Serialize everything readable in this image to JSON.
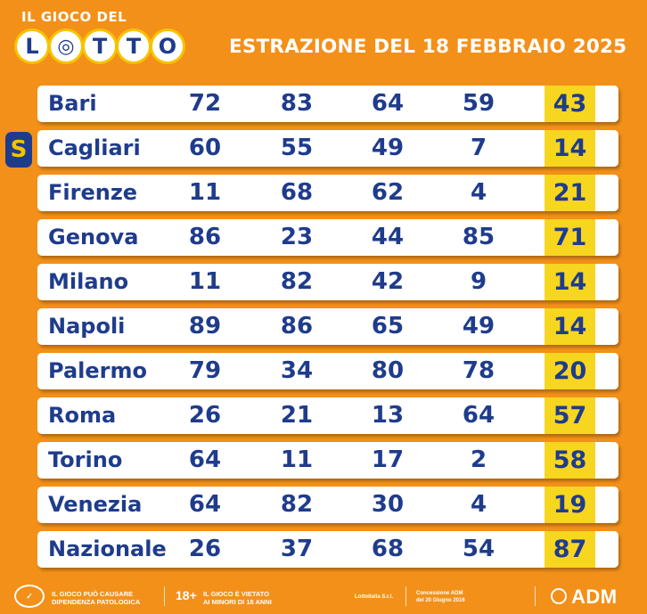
{
  "header": {
    "logo_top": "IL GIOCO DEL",
    "logo_letters": [
      "L",
      "◎",
      "T",
      "T",
      "O"
    ],
    "title": "ESTRAZIONE DEL 18 FEBBRAIO 2025"
  },
  "badge": "S",
  "rows": [
    {
      "city": "Bari",
      "n": [
        "72",
        "83",
        "64",
        "59",
        "43"
      ]
    },
    {
      "city": "Cagliari",
      "n": [
        "60",
        "55",
        "49",
        "7",
        "14"
      ]
    },
    {
      "city": "Firenze",
      "n": [
        "11",
        "68",
        "62",
        "4",
        "21"
      ]
    },
    {
      "city": "Genova",
      "n": [
        "86",
        "23",
        "44",
        "85",
        "71"
      ]
    },
    {
      "city": "Milano",
      "n": [
        "11",
        "82",
        "42",
        "9",
        "14"
      ]
    },
    {
      "city": "Napoli",
      "n": [
        "89",
        "86",
        "65",
        "49",
        "14"
      ]
    },
    {
      "city": "Palermo",
      "n": [
        "79",
        "34",
        "80",
        "78",
        "20"
      ]
    },
    {
      "city": "Roma",
      "n": [
        "26",
        "21",
        "13",
        "64",
        "57"
      ]
    },
    {
      "city": "Torino",
      "n": [
        "64",
        "11",
        "17",
        "2",
        "58"
      ]
    },
    {
      "city": "Venezia",
      "n": [
        "64",
        "82",
        "30",
        "4",
        "19"
      ]
    },
    {
      "city": "Nazionale",
      "n": [
        "26",
        "37",
        "68",
        "54",
        "87"
      ]
    }
  ],
  "footer": {
    "gioca_logo": "Gioca Sicuro",
    "warning1_l1": "IL GIOCO PUÒ CAUSARE",
    "warning1_l2": "DIPENDENZA PATOLOGICA",
    "age": "18+",
    "warning2_l1": "IL GIOCO È VIETATO",
    "warning2_l2": "AI MINORI DI 18 ANNI",
    "operator": "Lottoitalia S.r.l.",
    "concession_l1": "Concessione ADM",
    "concession_l2": "del 20 Giugno 2016",
    "adm": "ADM"
  },
  "colors": {
    "background": "#f39019",
    "text_blue": "#1f3c8c",
    "highlight_yellow": "#f7d61f"
  }
}
